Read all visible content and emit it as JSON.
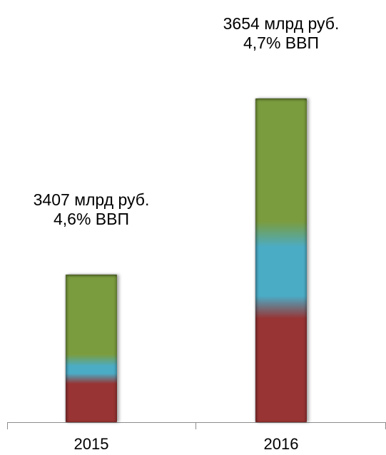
{
  "chart_data": {
    "type": "bar",
    "categories": [
      "2015",
      "2016"
    ],
    "values": [
      3407,
      3654
    ],
    "data_labels": [
      [
        "3407 млрд руб.",
        "4,6% ВВП"
      ],
      [
        "3654 млрд руб.",
        "4,7% ВВП"
      ]
    ],
    "colors": {
      "top": "#7b9c3e",
      "middle": "#4bacc6",
      "bottom": "#983433"
    },
    "stack_fractions": [
      {
        "bottom": 0.3,
        "middle": 0.12
      },
      {
        "bottom": 0.36,
        "middle": 0.22
      }
    ],
    "grid": false,
    "legend": "none"
  }
}
